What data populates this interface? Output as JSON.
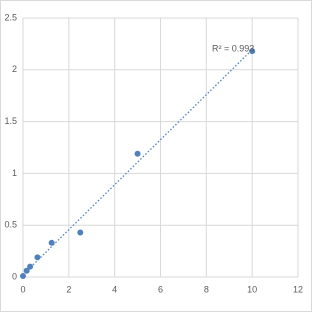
{
  "chart_data": {
    "type": "scatter",
    "annotation": "R² = 0.993",
    "x": [
      0,
      0.16,
      0.31,
      0.63,
      1.25,
      2.5,
      5,
      10
    ],
    "values": [
      0.01,
      0.06,
      0.1,
      0.19,
      0.33,
      0.43,
      1.19,
      2.18
    ],
    "color": "#4f81bd",
    "trendline": true,
    "xlim": [
      0,
      12
    ],
    "xticks": [
      0,
      2,
      4,
      6,
      8,
      10,
      12
    ],
    "ylim": [
      0,
      2.5
    ],
    "yticks": [
      0,
      0.5,
      1,
      1.5,
      2,
      2.5
    ],
    "grid": true
  }
}
